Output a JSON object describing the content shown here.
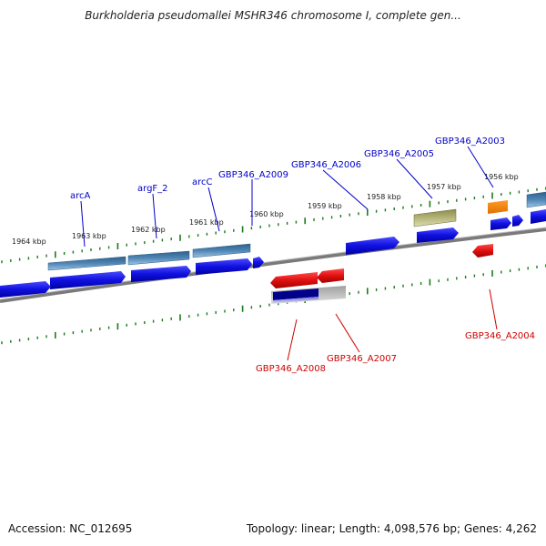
{
  "title": "Burkholderia pseudomallei MSHR346 chromosome I, complete gen...",
  "footer": {
    "accession": "Accession: NC_012695",
    "summary": "Topology: linear; Length: 4,098,576 bp; Genes: 4,262"
  },
  "scale_labels": [
    {
      "id": "kbp-1964",
      "text": "1964 kbp"
    },
    {
      "id": "kbp-1963",
      "text": "1963 kbp"
    },
    {
      "id": "kbp-1962",
      "text": "1962 kbp"
    },
    {
      "id": "kbp-1961",
      "text": "1961 kbp"
    },
    {
      "id": "kbp-1960",
      "text": "1960 kbp"
    },
    {
      "id": "kbp-1959",
      "text": "1959 kbp"
    },
    {
      "id": "kbp-1958",
      "text": "1958 kbp"
    },
    {
      "id": "kbp-1957",
      "text": "1957 kbp"
    },
    {
      "id": "kbp-1956",
      "text": "1956 kbp"
    }
  ],
  "forward_labels": [
    {
      "id": "arcA",
      "text": "arcA"
    },
    {
      "id": "argF_2",
      "text": "argF_2"
    },
    {
      "id": "arcC",
      "text": "arcC"
    },
    {
      "id": "GBP346_A2009",
      "text": "GBP346_A2009"
    },
    {
      "id": "GBP346_A2006",
      "text": "GBP346_A2006"
    },
    {
      "id": "GBP346_A2005",
      "text": "GBP346_A2005"
    },
    {
      "id": "GBP346_A2003",
      "text": "GBP346_A2003"
    }
  ],
  "reverse_labels": [
    {
      "id": "GBP346_A2008",
      "text": "GBP346_A2008"
    },
    {
      "id": "GBP346_A2007",
      "text": "GBP346_A2007"
    },
    {
      "id": "GBP346_A2004",
      "text": "GBP346_A2004"
    }
  ],
  "colors": {
    "forward_label": "#0000cc",
    "reverse_label": "#cc0000",
    "forward_gene": "#1010e0",
    "reverse_gene": "#e01010",
    "tick": "#1a7a1a",
    "backbone": "#888888"
  }
}
